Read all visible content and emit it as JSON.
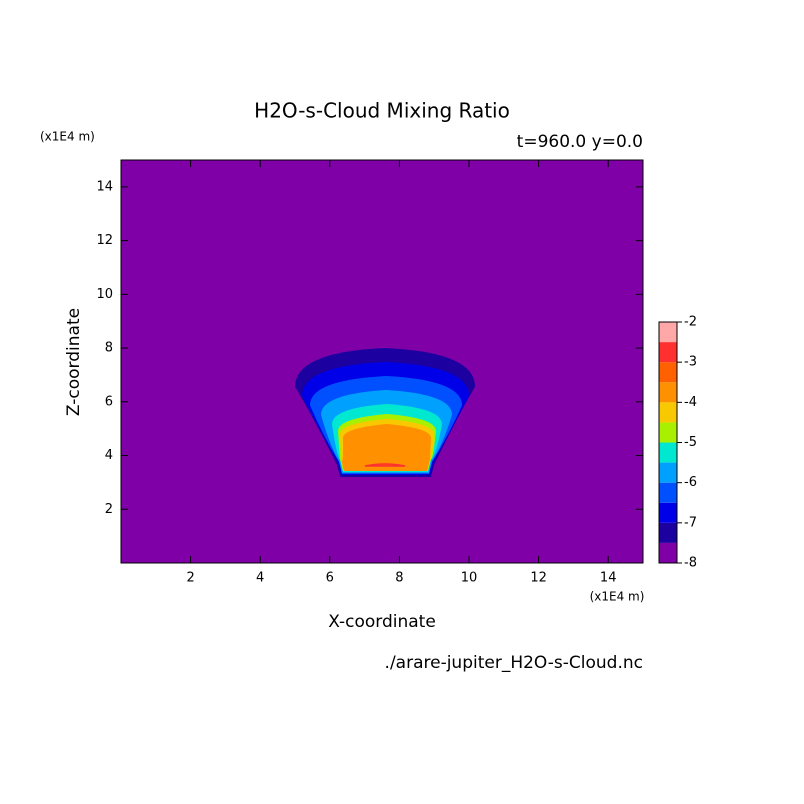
{
  "chart_data": {
    "type": "contour",
    "title": "H2O-s-Cloud Mixing Ratio",
    "subtitle": "t=960.0 y=0.0",
    "x_label": "X-coordinate",
    "y_label": "Z-coordinate",
    "x_unit": "(x1E4 m)",
    "y_unit": "(x1E4 m)",
    "source": "./arare-jupiter_H2O-s-Cloud.nc",
    "xlim": [
      0,
      15
    ],
    "ylim": [
      0,
      15
    ],
    "xticks": [
      2,
      4,
      6,
      8,
      10,
      12,
      14
    ],
    "yticks": [
      2,
      4,
      6,
      8,
      10,
      12,
      14
    ],
    "levels": [
      -8,
      -7.5,
      -7,
      -6.5,
      -6,
      -5.5,
      -5,
      -4.5,
      -4,
      -3.5,
      -3,
      -2.5,
      -2
    ],
    "colors": [
      "#8000a8",
      "#1c00a0",
      "#0000e8",
      "#0050ff",
      "#00a0ff",
      "#00e8d0",
      "#a8f000",
      "#f8c800",
      "#ff9000",
      "#ff6000",
      "#ff3030",
      "#ffa8a8"
    ],
    "colorbar_ticks": [
      -8,
      -7,
      -6,
      -5,
      -4,
      -3,
      -2
    ]
  }
}
